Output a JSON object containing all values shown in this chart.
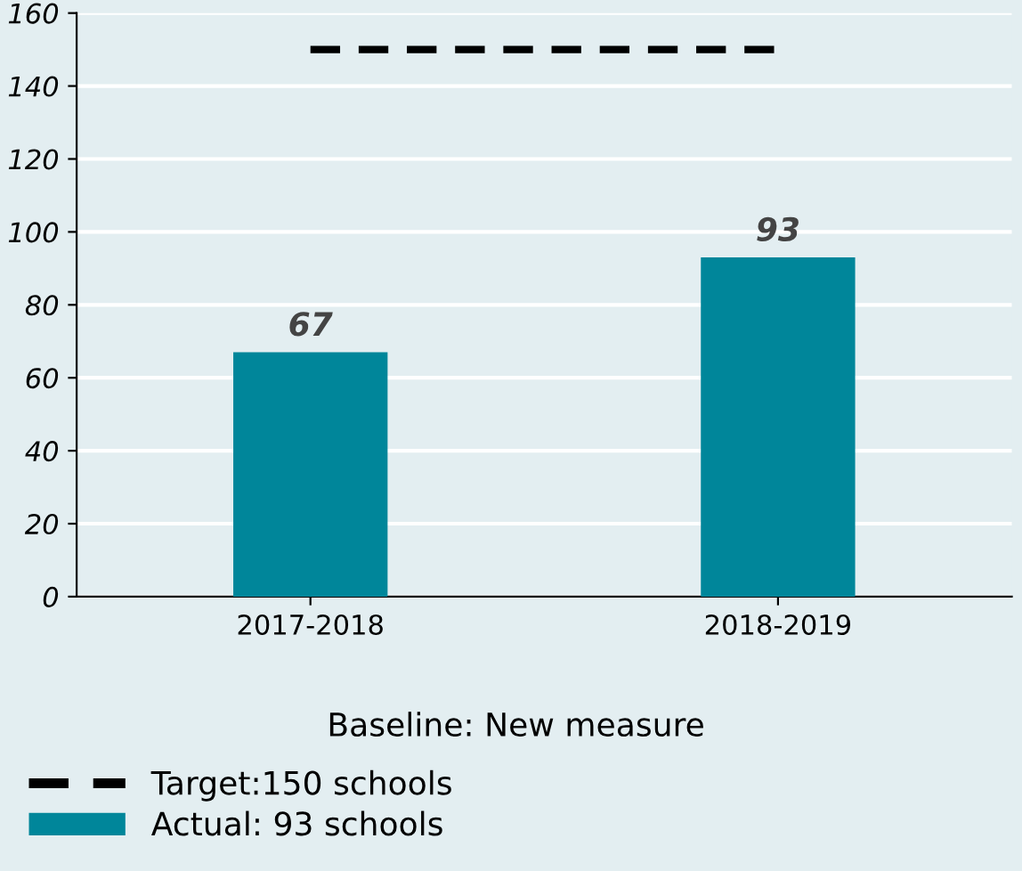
{
  "chart_data": {
    "type": "bar",
    "categories": [
      "2017-2018",
      "2018-2019"
    ],
    "series": [
      {
        "name": "Actual: 93 schools",
        "color": "#00869a",
        "values": [
          67,
          93
        ]
      }
    ],
    "ylim": [
      0,
      160
    ],
    "yticks": [
      0,
      20,
      40,
      60,
      80,
      100,
      120,
      140,
      160
    ],
    "grid": "y",
    "data_labels": true,
    "legend": "bottom",
    "ref_lines": [
      {
        "axis": "y",
        "value": 150,
        "label": "Target:150 schools",
        "color": "#000000",
        "line_style": "dashed"
      }
    ],
    "annotations": [
      "Baseline: New measure"
    ]
  }
}
